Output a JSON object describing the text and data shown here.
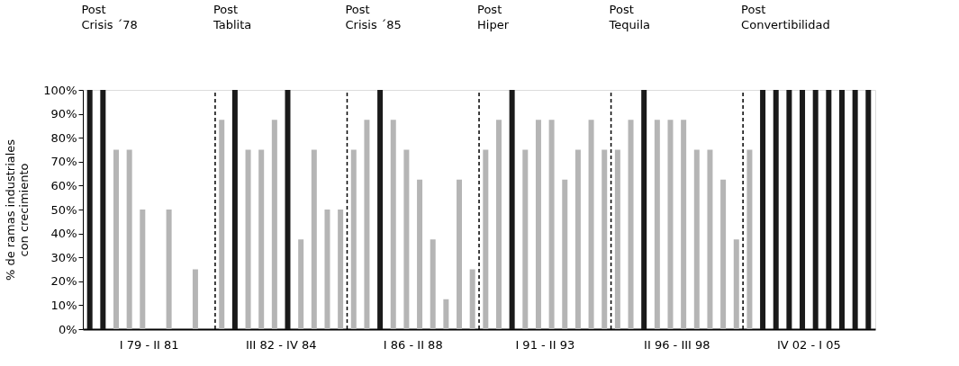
{
  "chart_data": {
    "type": "bar",
    "ylabel": "% de ramas industriales\ncon crecimiento",
    "categories": [
      null,
      null,
      null,
      null,
      null,
      null,
      null,
      null,
      null,
      null,
      null,
      null,
      null,
      null,
      null,
      null,
      null,
      null,
      null,
      null,
      null,
      null,
      null,
      null,
      null,
      null,
      null,
      null,
      null,
      null,
      null,
      null,
      null,
      null,
      null,
      null,
      null,
      null,
      null,
      null,
      null,
      null,
      null,
      null,
      null,
      null,
      null,
      null,
      null,
      null,
      null,
      null,
      null,
      null,
      null,
      null,
      null,
      null,
      null,
      null
    ],
    "values": [
      100,
      100,
      75,
      75,
      50,
      0,
      50,
      0,
      25,
      0,
      87.5,
      100,
      75,
      75,
      87.5,
      100,
      37.5,
      75,
      50,
      50,
      75,
      87.5,
      100,
      87.5,
      75,
      62.5,
      37.5,
      12.5,
      62.5,
      25,
      75,
      87.5,
      100,
      75,
      87.5,
      87.5,
      62.5,
      75,
      87.5,
      75,
      75,
      87.5,
      100,
      87.5,
      87.5,
      87.5,
      75,
      75,
      62.5,
      37.5,
      75,
      100,
      100,
      100,
      100,
      100,
      100,
      100,
      100,
      100
    ],
    "colors": [
      "#1a1a1a",
      "#1a1a1a",
      "#b5b5b5",
      "#b5b5b5",
      "#b5b5b5",
      "#b5b5b5",
      "#b5b5b5",
      "#b5b5b5",
      "#b5b5b5",
      "#b5b5b5",
      "#b5b5b5",
      "#1a1a1a",
      "#b5b5b5",
      "#b5b5b5",
      "#b5b5b5",
      "#1a1a1a",
      "#b5b5b5",
      "#b5b5b5",
      "#b5b5b5",
      "#b5b5b5",
      "#b5b5b5",
      "#b5b5b5",
      "#1a1a1a",
      "#b5b5b5",
      "#b5b5b5",
      "#b5b5b5",
      "#b5b5b5",
      "#b5b5b5",
      "#b5b5b5",
      "#b5b5b5",
      "#b5b5b5",
      "#b5b5b5",
      "#1a1a1a",
      "#b5b5b5",
      "#b5b5b5",
      "#b5b5b5",
      "#b5b5b5",
      "#b5b5b5",
      "#b5b5b5",
      "#b5b5b5",
      "#b5b5b5",
      "#b5b5b5",
      "#1a1a1a",
      "#b5b5b5",
      "#b5b5b5",
      "#b5b5b5",
      "#b5b5b5",
      "#b5b5b5",
      "#b5b5b5",
      "#b5b5b5",
      "#b5b5b5",
      "#1a1a1a",
      "#1a1a1a",
      "#1a1a1a",
      "#1a1a1a",
      "#1a1a1a",
      "#1a1a1a",
      "#1a1a1a",
      "#1a1a1a",
      "#1a1a1a"
    ],
    "ylim": [
      0,
      100
    ],
    "yticks": [
      {
        "value": 0,
        "label": "0%"
      },
      {
        "value": 10,
        "label": "10%"
      },
      {
        "value": 20,
        "label": "20%"
      },
      {
        "value": 30,
        "label": "30%"
      },
      {
        "value": 40,
        "label": "40%"
      },
      {
        "value": 50,
        "label": "50%"
      },
      {
        "value": 60,
        "label": "60%"
      },
      {
        "value": 70,
        "label": "70%"
      },
      {
        "value": 80,
        "label": "80%"
      },
      {
        "value": 90,
        "label": "90%"
      },
      {
        "value": 100,
        "label": "100%"
      }
    ],
    "tick_labels": "y",
    "grid": false,
    "annotations": [
      "Post\nCrisis ´78",
      "Post\nTablita",
      "Post\nCrisis ´85",
      "Post\nHiper",
      "Post\nTequila",
      "Post\nConvertibilidad",
      "I 79 - II 81",
      "III 82 - IV 84",
      "I 86 - II 88",
      "I 91 - II 93",
      "II 96 - III 98",
      "IV 02 - I 05"
    ]
  }
}
